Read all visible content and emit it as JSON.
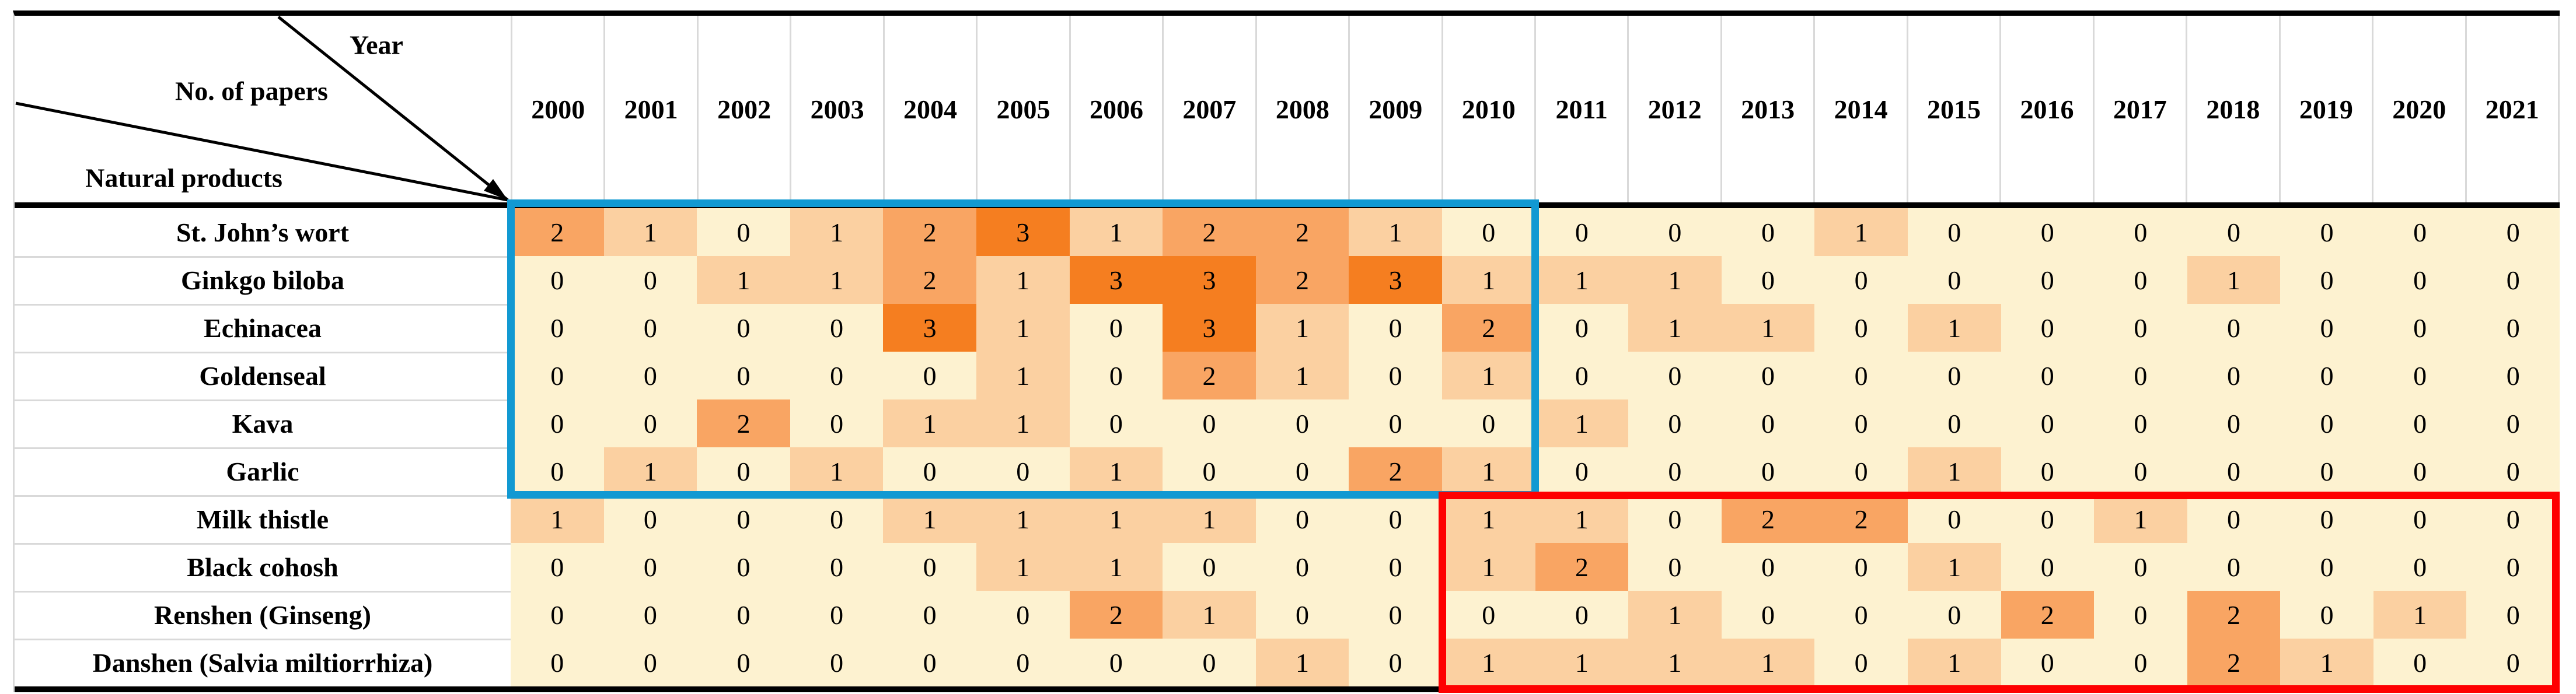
{
  "chart_data": {
    "type": "heatmap",
    "corner": {
      "top_label": "Year",
      "middle_label": "No. of papers",
      "bottom_label": "Natural products"
    },
    "years": [
      "2000",
      "2001",
      "2002",
      "2003",
      "2004",
      "2005",
      "2006",
      "2007",
      "2008",
      "2009",
      "2010",
      "2011",
      "2012",
      "2013",
      "2014",
      "2015",
      "2016",
      "2017",
      "2018",
      "2019",
      "2020",
      "2021"
    ],
    "rows": [
      {
        "product": "St. John’s wort",
        "values": [
          2,
          1,
          0,
          1,
          2,
          3,
          1,
          2,
          2,
          1,
          0,
          0,
          0,
          0,
          1,
          0,
          0,
          0,
          0,
          0,
          0,
          0
        ]
      },
      {
        "product": "Ginkgo biloba",
        "values": [
          0,
          0,
          1,
          1,
          2,
          1,
          3,
          3,
          2,
          3,
          1,
          1,
          1,
          0,
          0,
          0,
          0,
          0,
          1,
          0,
          0,
          0
        ]
      },
      {
        "product": "Echinacea",
        "values": [
          0,
          0,
          0,
          0,
          3,
          1,
          0,
          3,
          1,
          0,
          2,
          0,
          1,
          1,
          0,
          1,
          0,
          0,
          0,
          0,
          0,
          0
        ]
      },
      {
        "product": "Goldenseal",
        "values": [
          0,
          0,
          0,
          0,
          0,
          1,
          0,
          2,
          1,
          0,
          1,
          0,
          0,
          0,
          0,
          0,
          0,
          0,
          0,
          0,
          0,
          0
        ]
      },
      {
        "product": "Kava",
        "values": [
          0,
          0,
          2,
          0,
          1,
          1,
          0,
          0,
          0,
          0,
          0,
          1,
          0,
          0,
          0,
          0,
          0,
          0,
          0,
          0,
          0,
          0
        ]
      },
      {
        "product": "Garlic",
        "values": [
          0,
          1,
          0,
          1,
          0,
          0,
          1,
          0,
          0,
          2,
          1,
          0,
          0,
          0,
          0,
          1,
          0,
          0,
          0,
          0,
          0,
          0
        ]
      },
      {
        "product": "Milk thistle",
        "values": [
          1,
          0,
          0,
          0,
          1,
          1,
          1,
          1,
          0,
          0,
          1,
          1,
          0,
          2,
          2,
          0,
          0,
          1,
          0,
          0,
          0,
          0
        ]
      },
      {
        "product": "Black cohosh",
        "values": [
          0,
          0,
          0,
          0,
          0,
          1,
          1,
          0,
          0,
          0,
          1,
          2,
          0,
          0,
          0,
          1,
          0,
          0,
          0,
          0,
          0,
          0
        ]
      },
      {
        "product": "Renshen (Ginseng)",
        "values": [
          0,
          0,
          0,
          0,
          0,
          0,
          2,
          1,
          0,
          0,
          0,
          0,
          1,
          0,
          0,
          0,
          2,
          0,
          2,
          0,
          1,
          0
        ]
      },
      {
        "product": "Danshen (Salvia miltiorrhiza)",
        "values": [
          0,
          0,
          0,
          0,
          0,
          0,
          0,
          0,
          1,
          0,
          1,
          1,
          1,
          1,
          0,
          1,
          0,
          0,
          2,
          1,
          0,
          0
        ]
      }
    ],
    "value_colors": {
      "0": "#FDF2D0",
      "1": "#FBD0A1",
      "2": "#F9A563",
      "3": "#F57E20"
    },
    "annotations": [
      {
        "name": "blue-box",
        "color": "#1199D2",
        "products": "St. John’s wort – Garlic",
        "years": "2000–2010"
      },
      {
        "name": "red-box",
        "color": "#FE0000",
        "products": "Milk thistle – Danshen (Salvia miltiorrhiza)",
        "years": "2010–2021"
      }
    ],
    "value_range": [
      0,
      3
    ],
    "grid": "header-and-label-separators-only",
    "legend": "none"
  }
}
